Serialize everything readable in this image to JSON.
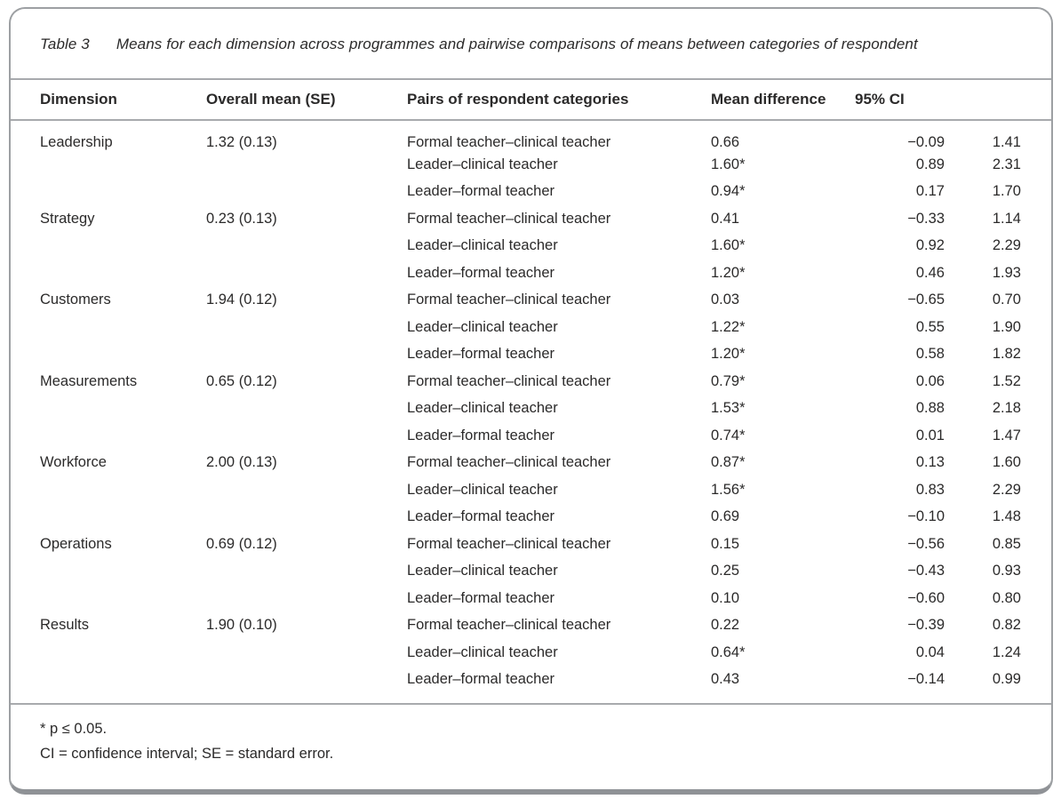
{
  "colors": {
    "card_border": "#9da0a3",
    "card_border_bottom": "#8f9296",
    "rule": "#a8aaad",
    "text": "#2b2a2a"
  },
  "table": {
    "caption_label": "Table 3",
    "caption_text": "Means for each dimension across programmes and pairwise comparisons of means between categories of respondent",
    "columns": {
      "dimension": "Dimension",
      "overall_mean": "Overall mean (SE)",
      "pairs": "Pairs of respondent categories",
      "mean_difference": "Mean difference",
      "ci": "95% CI"
    },
    "groups": [
      {
        "dimension": "Leadership",
        "overall_mean_se": "1.32 (0.13)",
        "rows": [
          {
            "pair": "Formal teacher–clinical teacher",
            "mean_difference": "0.66",
            "ci_low": "−0.09",
            "ci_high": "1.41"
          },
          {
            "pair": "Leader–clinical teacher",
            "mean_difference": "1.60*",
            "ci_low": "0.89",
            "ci_high": "2.31"
          },
          {
            "pair": "Leader–formal teacher",
            "mean_difference": "0.94*",
            "ci_low": "0.17",
            "ci_high": "1.70"
          }
        ]
      },
      {
        "dimension": "Strategy",
        "overall_mean_se": "0.23 (0.13)",
        "rows": [
          {
            "pair": "Formal teacher–clinical teacher",
            "mean_difference": "0.41",
            "ci_low": "−0.33",
            "ci_high": "1.14"
          },
          {
            "pair": "Leader–clinical teacher",
            "mean_difference": "1.60*",
            "ci_low": "0.92",
            "ci_high": "2.29"
          },
          {
            "pair": "Leader–formal teacher",
            "mean_difference": "1.20*",
            "ci_low": "0.46",
            "ci_high": "1.93"
          }
        ]
      },
      {
        "dimension": "Customers",
        "overall_mean_se": "1.94 (0.12)",
        "rows": [
          {
            "pair": "Formal teacher–clinical teacher",
            "mean_difference": "0.03",
            "ci_low": "−0.65",
            "ci_high": "0.70"
          },
          {
            "pair": "Leader–clinical teacher",
            "mean_difference": "1.22*",
            "ci_low": "0.55",
            "ci_high": "1.90"
          },
          {
            "pair": "Leader–formal teacher",
            "mean_difference": "1.20*",
            "ci_low": "0.58",
            "ci_high": "1.82"
          }
        ]
      },
      {
        "dimension": "Measurements",
        "overall_mean_se": "0.65 (0.12)",
        "rows": [
          {
            "pair": "Formal teacher–clinical teacher",
            "mean_difference": "0.79*",
            "ci_low": "0.06",
            "ci_high": "1.52"
          },
          {
            "pair": "Leader–clinical teacher",
            "mean_difference": "1.53*",
            "ci_low": "0.88",
            "ci_high": "2.18"
          },
          {
            "pair": "Leader–formal teacher",
            "mean_difference": "0.74*",
            "ci_low": "0.01",
            "ci_high": "1.47"
          }
        ]
      },
      {
        "dimension": "Workforce",
        "overall_mean_se": "2.00 (0.13)",
        "rows": [
          {
            "pair": "Formal teacher–clinical teacher",
            "mean_difference": "0.87*",
            "ci_low": "0.13",
            "ci_high": "1.60"
          },
          {
            "pair": "Leader–clinical teacher",
            "mean_difference": "1.56*",
            "ci_low": "0.83",
            "ci_high": "2.29"
          },
          {
            "pair": "Leader–formal teacher",
            "mean_difference": "0.69",
            "ci_low": "−0.10",
            "ci_high": "1.48"
          }
        ]
      },
      {
        "dimension": "Operations",
        "overall_mean_se": "0.69 (0.12)",
        "rows": [
          {
            "pair": "Formal teacher–clinical teacher",
            "mean_difference": "0.15",
            "ci_low": "−0.56",
            "ci_high": "0.85"
          },
          {
            "pair": "Leader–clinical teacher",
            "mean_difference": "0.25",
            "ci_low": "−0.43",
            "ci_high": "0.93"
          },
          {
            "pair": "Leader–formal teacher",
            "mean_difference": "0.10",
            "ci_low": "−0.60",
            "ci_high": "0.80"
          }
        ]
      },
      {
        "dimension": "Results",
        "overall_mean_se": "1.90 (0.10)",
        "rows": [
          {
            "pair": "Formal teacher–clinical teacher",
            "mean_difference": "0.22",
            "ci_low": "−0.39",
            "ci_high": "0.82"
          },
          {
            "pair": "Leader–clinical teacher",
            "mean_difference": "0.64*",
            "ci_low": "0.04",
            "ci_high": "1.24"
          },
          {
            "pair": "Leader–formal teacher",
            "mean_difference": "0.43",
            "ci_low": "−0.14",
            "ci_high": "0.99"
          }
        ]
      }
    ],
    "footnotes": {
      "significance": "* p ≤ 0.05.",
      "abbreviations": "CI = confidence interval; SE = standard error."
    }
  }
}
